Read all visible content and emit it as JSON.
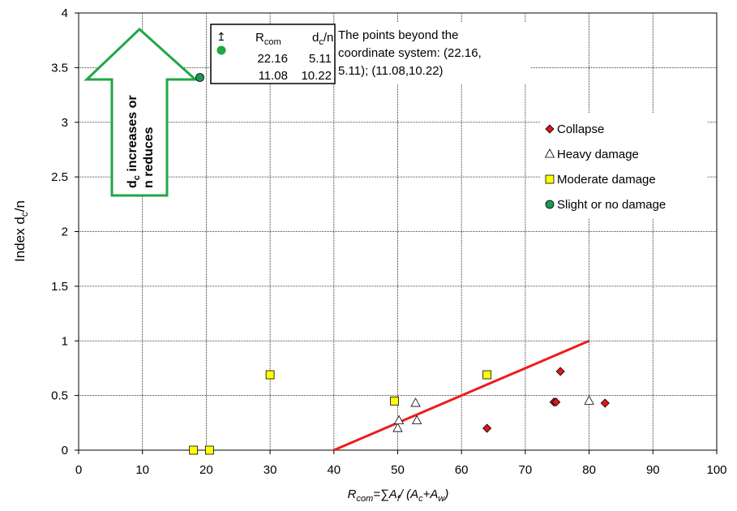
{
  "chart_data": {
    "type": "scatter",
    "xlabel": {
      "main": "R",
      "main_sub": "com",
      "formula_lead": "=∑A",
      "f_sub": "f",
      "formula_mid": "/ (A",
      "c_sub": "c",
      "formula_plus": "+A",
      "w_sub": "w",
      "formula_close": ")"
    },
    "ylabel": {
      "main": "Index d",
      "sub": "c",
      "tail": "/n"
    },
    "xlim": [
      0,
      100
    ],
    "ylim": [
      0,
      4
    ],
    "x_ticks": [
      "0",
      "10",
      "20",
      "30",
      "40",
      "50",
      "60",
      "70",
      "80",
      "90",
      "100"
    ],
    "y_ticks": [
      "0",
      "0.5",
      "1",
      "1.5",
      "2",
      "2.5",
      "3",
      "3.5",
      "4"
    ],
    "grid": true,
    "legend_position": "right",
    "series": [
      {
        "name": "Collapse",
        "marker": "diamond",
        "color": "#e0161b",
        "points": [
          [
            64,
            0.2
          ],
          [
            74.5,
            0.44
          ],
          [
            74.8,
            0.44
          ],
          [
            75.5,
            0.72
          ],
          [
            82.5,
            0.43
          ]
        ]
      },
      {
        "name": "Heavy damage",
        "marker": "triangle",
        "color": "#ffffff",
        "points": [
          [
            50,
            0.2
          ],
          [
            50.2,
            0.27
          ],
          [
            52.8,
            0.43
          ],
          [
            53,
            0.27
          ],
          [
            80,
            0.45
          ]
        ]
      },
      {
        "name": "Moderate damage",
        "marker": "square",
        "color": "#ffff00",
        "points": [
          [
            18,
            0
          ],
          [
            20.5,
            0
          ],
          [
            30,
            0.69
          ],
          [
            49.5,
            0.45
          ],
          [
            64,
            0.69
          ]
        ]
      },
      {
        "name": "Slight or no damage",
        "marker": "circle",
        "color": "#1a9a50",
        "points": [
          [
            19,
            3.41
          ]
        ]
      }
    ],
    "trend_line": {
      "color": "#ee1c1c",
      "points": [
        [
          40,
          0
        ],
        [
          80,
          1
        ]
      ]
    },
    "arrow_annotation": {
      "line1": {
        "main": "d",
        "sub": "c",
        "tail": " increases or"
      },
      "line2": "n reduces",
      "color": "#1fa844"
    },
    "inset_table": {
      "up_arrow": "↥",
      "headers": [
        {
          "main": "R",
          "sub": "com"
        },
        {
          "main": "d",
          "sub": "c",
          "tail": "/n"
        }
      ],
      "rows": [
        [
          "22.16",
          "5.11"
        ],
        [
          "11.08",
          "10.22"
        ]
      ]
    },
    "note_lines": [
      "The points beyond the",
      "coordinate system: (22.16,",
      "5.11); (11.08,10.22)"
    ]
  }
}
